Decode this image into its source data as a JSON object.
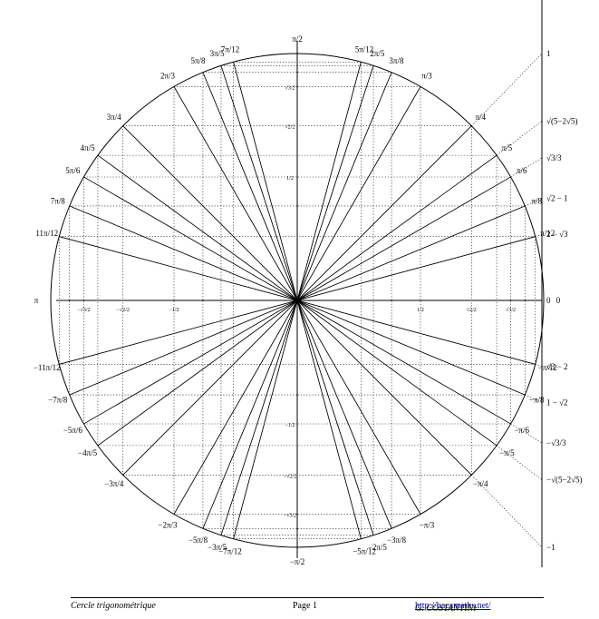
{
  "angles": [
    {
      "deg": 0,
      "label": "0"
    },
    {
      "deg": 15,
      "label": "π/12"
    },
    {
      "deg": 22.5,
      "label": "π/8"
    },
    {
      "deg": 30,
      "label": "π/6"
    },
    {
      "deg": 36,
      "label": "π/5"
    },
    {
      "deg": 45,
      "label": "π/4"
    },
    {
      "deg": 60,
      "label": "π/3"
    },
    {
      "deg": 67.5,
      "label": "3π/8"
    },
    {
      "deg": 72,
      "label": "2π/5"
    },
    {
      "deg": 75,
      "label": "5π/12"
    },
    {
      "deg": 90,
      "label": "π/2"
    },
    {
      "deg": 105,
      "label": "7π/12"
    },
    {
      "deg": 108,
      "label": "3π/5"
    },
    {
      "deg": 112.5,
      "label": "5π/8"
    },
    {
      "deg": 120,
      "label": "2π/3"
    },
    {
      "deg": 135,
      "label": "3π/4"
    },
    {
      "deg": 144,
      "label": "4π/5"
    },
    {
      "deg": 150,
      "label": "5π/6"
    },
    {
      "deg": 157.5,
      "label": "7π/8"
    },
    {
      "deg": 165,
      "label": "11π/12"
    },
    {
      "deg": 180,
      "label": "π"
    },
    {
      "deg": -15,
      "label": "−π/12"
    },
    {
      "deg": -22.5,
      "label": "−π/8"
    },
    {
      "deg": -30,
      "label": "−π/6"
    },
    {
      "deg": -36,
      "label": "−π/5"
    },
    {
      "deg": -45,
      "label": "−π/4"
    },
    {
      "deg": -60,
      "label": "−π/3"
    },
    {
      "deg": -67.5,
      "label": "−3π/8"
    },
    {
      "deg": -72,
      "label": "−2π/5"
    },
    {
      "deg": -75,
      "label": "−5π/12"
    },
    {
      "deg": -90,
      "label": "−π/2"
    },
    {
      "deg": -105,
      "label": "−7π/12"
    },
    {
      "deg": -108,
      "label": "−3π/5"
    },
    {
      "deg": -112.5,
      "label": "−5π/8"
    },
    {
      "deg": -120,
      "label": "−2π/3"
    },
    {
      "deg": -135,
      "label": "−3π/4"
    },
    {
      "deg": -144,
      "label": "−4π/5"
    },
    {
      "deg": -150,
      "label": "−5π/6"
    },
    {
      "deg": -157.5,
      "label": "−7π/8"
    },
    {
      "deg": -165,
      "label": "−11π/12"
    }
  ],
  "x_axis_values": [
    {
      "value": 0.5,
      "label": "1/2"
    },
    {
      "value": 0.7071,
      "label": "√2/2"
    },
    {
      "value": 0.866,
      "label": "√3/2"
    },
    {
      "value": -0.5,
      "label": "−1/2"
    },
    {
      "value": -0.7071,
      "label": "−√2/2"
    },
    {
      "value": -0.866,
      "label": "−√3/2"
    }
  ],
  "y_axis_values": [
    {
      "value": 0.5,
      "label": "1/2"
    },
    {
      "value": 0.7071,
      "label": "√2/2"
    },
    {
      "value": 0.866,
      "label": "√3/2"
    },
    {
      "value": -0.5,
      "label": "−1/2"
    },
    {
      "value": -0.7071,
      "label": "−√2/2"
    },
    {
      "value": -0.866,
      "label": "−√3/2"
    }
  ],
  "tangent_values": [
    {
      "value": 1,
      "label": "1"
    },
    {
      "value": 0.7265,
      "label": "√(5−2√5)"
    },
    {
      "value": 0.5774,
      "label": "√3/3"
    },
    {
      "value": 0.4142,
      "label": "√2 − 1"
    },
    {
      "value": 0.2679,
      "label": "2 − √3"
    },
    {
      "value": 0,
      "label": "0"
    },
    {
      "value": -0.2679,
      "label": "√3 − 2"
    },
    {
      "value": -0.4142,
      "label": "1 − √2"
    },
    {
      "value": -0.5774,
      "label": "−√3/3"
    },
    {
      "value": -0.7265,
      "label": "−√(5−2√5)"
    },
    {
      "value": -1,
      "label": "−1"
    }
  ],
  "footer": {
    "title": "Cercle trigonométrique",
    "page": "Page 1",
    "author": "G. COSTANTINI",
    "url": "http://bacamaths.net/"
  }
}
